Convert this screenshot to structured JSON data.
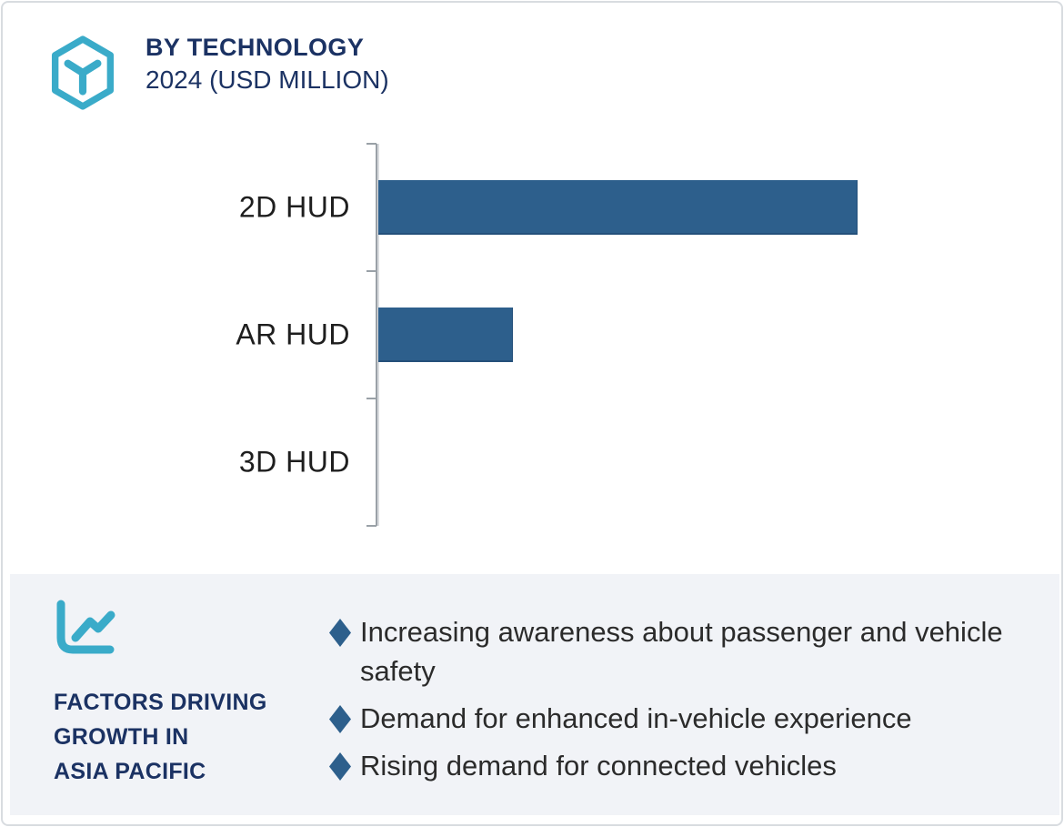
{
  "header": {
    "title": "BY TECHNOLOGY",
    "subtitle": "2024 (USD MILLION)"
  },
  "chart_data": {
    "type": "bar",
    "orientation": "horizontal",
    "title": "BY TECHNOLOGY",
    "subtitle": "2024 (USD MILLION)",
    "categories": [
      "2D HUD",
      "AR HUD",
      "3D HUD"
    ],
    "values": [
      100,
      28,
      0
    ],
    "values_note": "relative estimates from bar lengths; no numeric axis or data labels shown",
    "unit": "USD Million",
    "xlabel": "",
    "ylabel": "",
    "grid": false,
    "legend": null,
    "value_labels_shown": false,
    "bar_color": "#2d5f8c"
  },
  "factors_panel": {
    "heading_lines": [
      "FACTORS DRIVING",
      "GROWTH IN",
      "ASIA PACIFIC"
    ],
    "bullets": [
      "Increasing awareness about passenger and vehicle safety",
      "Demand for enhanced in-vehicle experience",
      "Rising demand for connected vehicles"
    ]
  },
  "icons": {
    "header_icon": "hexagon-cube-icon",
    "factors_icon": "trend-chart-icon"
  },
  "colors": {
    "accent_teal": "#3aabc9",
    "navy": "#1b3263",
    "bar_blue": "#2d5f8c",
    "panel_bg": "#f1f3f7",
    "axis_gray": "#9aa1a7",
    "text_dark": "#2b2b2b"
  }
}
